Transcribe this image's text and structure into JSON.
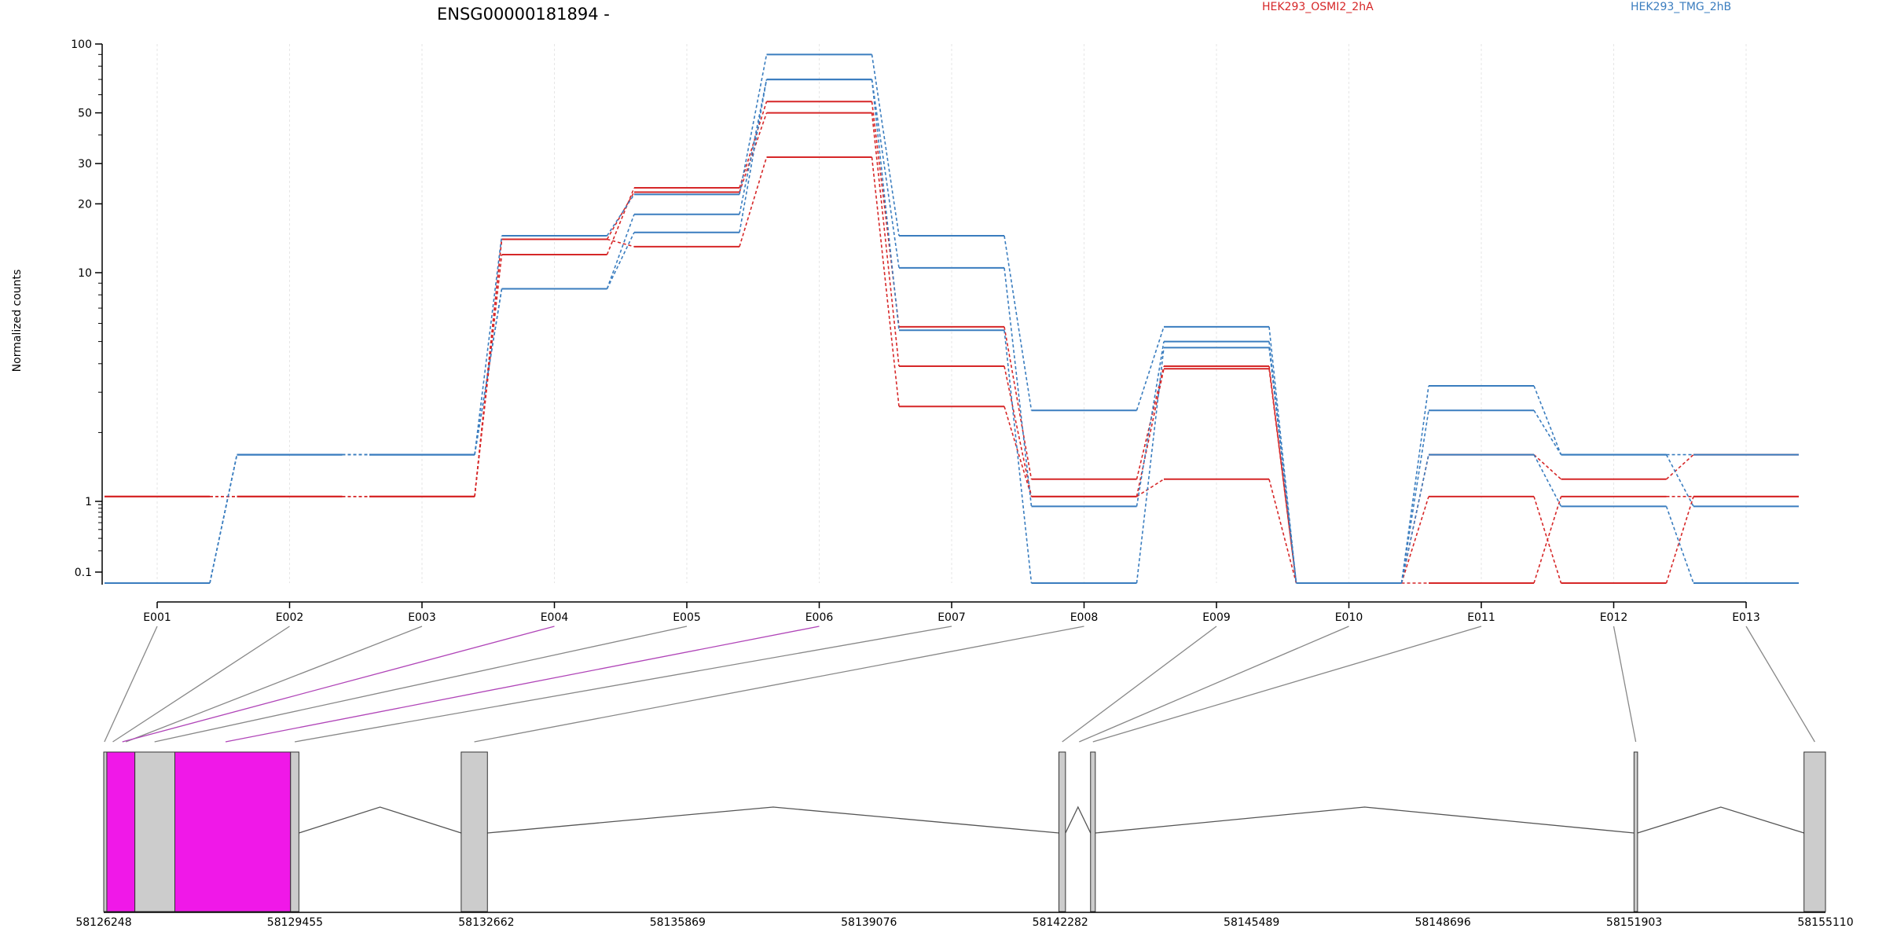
{
  "chart_data": {
    "type": "line",
    "title": "ENSG00000181894 -",
    "ylabel": "Normalized counts",
    "xlabel": "",
    "y_scale": "log",
    "grid": true,
    "legend_position": "top",
    "categories": [
      "E001",
      "E002",
      "E003",
      "E004",
      "E005",
      "E006",
      "E007",
      "E008",
      "E009",
      "E010",
      "E011",
      "E012",
      "E013"
    ],
    "y_ticks": [
      {
        "label": "100",
        "value": 100
      },
      {
        "label": "50",
        "value": 50
      },
      {
        "label": "30",
        "value": 30
      },
      {
        "label": "20",
        "value": 20
      },
      {
        "label": "10",
        "value": 10
      },
      {
        "label": "1",
        "value": 1
      },
      {
        "label": "0.1",
        "value": 0.1
      }
    ],
    "groups": [
      {
        "name": "HEK293_OSMI2_2hA",
        "color": "#d62728"
      },
      {
        "name": "HEK293_TMG_2hB",
        "color": "#3a7dbf"
      }
    ],
    "series": [
      {
        "group": 0,
        "values": [
          1.05,
          1.05,
          1.05,
          12.0,
          23.5,
          56.0,
          5.8,
          1.25,
          3.9,
          0.065,
          1.6,
          1.25,
          1.6
        ]
      },
      {
        "group": 0,
        "values": [
          1.05,
          1.05,
          1.05,
          14.0,
          22.5,
          50.0,
          3.9,
          1.05,
          3.8,
          0.065,
          1.05,
          0.065,
          1.05
        ]
      },
      {
        "group": 0,
        "values": [
          1.05,
          1.05,
          1.05,
          14.0,
          13.0,
          32.0,
          2.6,
          1.05,
          1.25,
          0.065,
          0.065,
          1.05,
          1.05
        ]
      },
      {
        "group": 1,
        "values": [
          0.065,
          1.6,
          1.6,
          14.5,
          22.0,
          90.0,
          14.5,
          2.5,
          5.8,
          0.065,
          3.2,
          1.6,
          1.6
        ]
      },
      {
        "group": 1,
        "values": [
          0.065,
          1.6,
          1.6,
          8.5,
          18.0,
          70.0,
          10.5,
          0.85,
          5.0,
          0.065,
          2.5,
          1.6,
          0.85
        ]
      },
      {
        "group": 1,
        "values": [
          0.065,
          1.6,
          1.6,
          8.5,
          15.0,
          70.0,
          5.6,
          0.065,
          4.7,
          0.065,
          1.6,
          0.85,
          0.065
        ]
      }
    ],
    "gene_model": {
      "coordinate_labels": [
        "58126248",
        "58129455",
        "58132662",
        "58135869",
        "58139076",
        "58142282",
        "58145489",
        "58148696",
        "58151903",
        "58155110"
      ],
      "range": [
        58126248,
        58155110
      ],
      "exons": [
        {
          "start": 58126248,
          "end": 58126300,
          "color": "#cccccc"
        },
        {
          "start": 58126300,
          "end": 58126770,
          "color": "#f018e8"
        },
        {
          "start": 58126770,
          "end": 58127440,
          "color": "#cccccc"
        },
        {
          "start": 58127440,
          "end": 58129380,
          "color": "#f018e8"
        },
        {
          "start": 58129380,
          "end": 58129520,
          "color": "#cccccc"
        },
        {
          "start": 58132240,
          "end": 58132680,
          "color": "#cccccc"
        },
        {
          "start": 58142260,
          "end": 58142370,
          "color": "#cccccc"
        },
        {
          "start": 58142790,
          "end": 58142870,
          "color": "#cccccc"
        },
        {
          "start": 58151900,
          "end": 58151960,
          "color": "#cccccc"
        },
        {
          "start": 58154750,
          "end": 58155110,
          "color": "#cccccc"
        }
      ],
      "introns": [
        {
          "start": 58129520,
          "end": 58132240
        },
        {
          "start": 58132680,
          "end": 58142260
        },
        {
          "start": 58142370,
          "end": 58142790
        },
        {
          "start": 58142870,
          "end": 58151900
        },
        {
          "start": 58151960,
          "end": 58154750
        }
      ],
      "exon_connectors": [
        {
          "exon": "E001",
          "genomic": 58126260,
          "color": "#888888"
        },
        {
          "exon": "E002",
          "genomic": 58126400,
          "color": "#888888"
        },
        {
          "exon": "E003",
          "genomic": 58126620,
          "color": "#888888"
        },
        {
          "exon": "E004",
          "genomic": 58126560,
          "color": "#b045b8"
        },
        {
          "exon": "E005",
          "genomic": 58127100,
          "color": "#888888"
        },
        {
          "exon": "E006",
          "genomic": 58128290,
          "color": "#b045b8"
        },
        {
          "exon": "E007",
          "genomic": 58129450,
          "color": "#888888"
        },
        {
          "exon": "E008",
          "genomic": 58132460,
          "color": "#888888"
        },
        {
          "exon": "E009",
          "genomic": 58142315,
          "color": "#888888"
        },
        {
          "exon": "E010",
          "genomic": 58142600,
          "color": "#888888"
        },
        {
          "exon": "E011",
          "genomic": 58142830,
          "color": "#888888"
        },
        {
          "exon": "E012",
          "genomic": 58151930,
          "color": "#888888"
        },
        {
          "exon": "E013",
          "genomic": 58154930,
          "color": "#888888"
        }
      ]
    }
  }
}
